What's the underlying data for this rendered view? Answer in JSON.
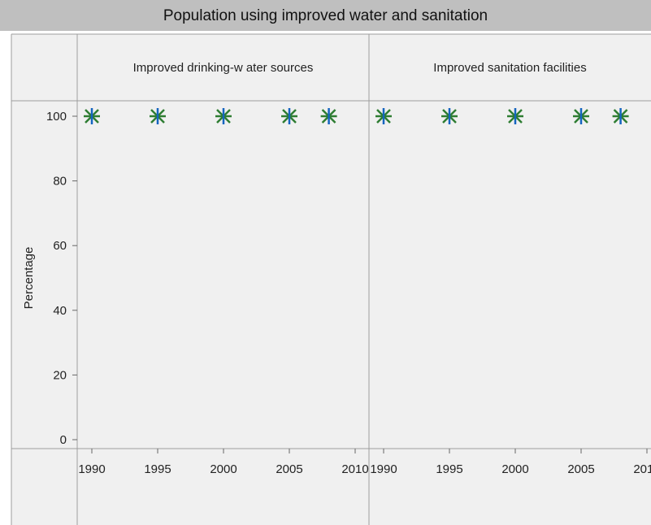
{
  "chart_data": {
    "type": "scatter",
    "title": "Population using improved water and sanitation",
    "ylabel": "Percentage",
    "ylim": [
      0,
      100
    ],
    "yticks": [
      0,
      20,
      40,
      60,
      80,
      100
    ],
    "xlim": [
      1989,
      2011
    ],
    "xticks": [
      1990,
      1995,
      2000,
      2005,
      2010
    ],
    "marker_color": "#2e7d32",
    "marker_accent": "#1565c0",
    "panels": [
      {
        "title": "Improved drinking-w ater sources",
        "series": [
          {
            "x": [
              1990,
              1995,
              2000,
              2005,
              2008
            ],
            "values": [
              100,
              100,
              100,
              100,
              100
            ]
          }
        ]
      },
      {
        "title": "Improved sanitation facilities",
        "series": [
          {
            "x": [
              1990,
              1995,
              2000,
              2005,
              2008
            ],
            "values": [
              100,
              100,
              100,
              100,
              100
            ]
          }
        ]
      }
    ]
  }
}
